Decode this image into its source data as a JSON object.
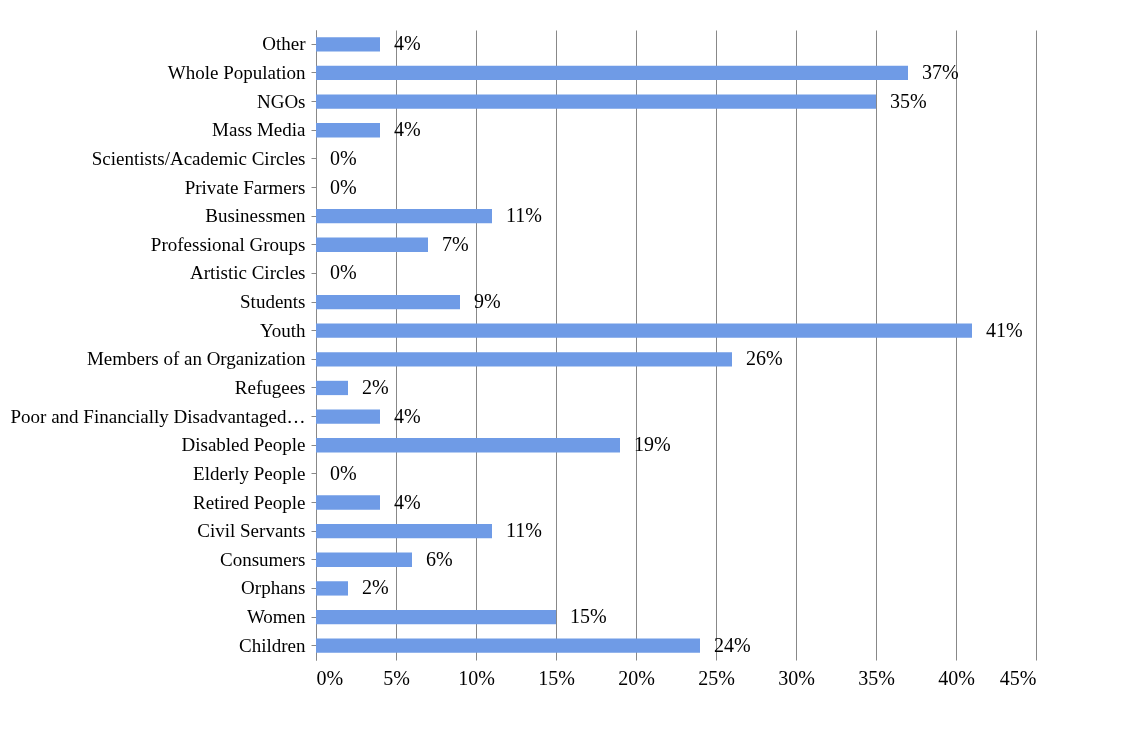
{
  "chart_data": {
    "type": "bar",
    "orientation": "horizontal",
    "categories": [
      "Other",
      "Whole Population",
      "NGOs",
      "Mass Media",
      "Scientists/Academic Circles",
      "Private Farmers",
      "Businessmen",
      "Professional Groups",
      "Artistic Circles",
      "Students",
      "Youth",
      "Members of an Organization",
      "Refugees",
      "Poor and Financially Disadvantaged…",
      "Disabled People",
      "Elderly People",
      "Retired People",
      "Civil Servants",
      "Consumers",
      "Orphans",
      "Women",
      "Children"
    ],
    "values": [
      4,
      37,
      35,
      4,
      0,
      0,
      11,
      7,
      0,
      9,
      41,
      26,
      2,
      4,
      19,
      0,
      4,
      11,
      6,
      2,
      15,
      24
    ],
    "color": "#6f9be6",
    "xlim": [
      0,
      45
    ],
    "xticks": [
      {
        "value": 0,
        "label": "0%"
      },
      {
        "value": 5,
        "label": "5%"
      },
      {
        "value": 10,
        "label": "10%"
      },
      {
        "value": 15,
        "label": "15%"
      },
      {
        "value": 20,
        "label": "20%"
      },
      {
        "value": 25,
        "label": "25%"
      },
      {
        "value": 30,
        "label": "30%"
      },
      {
        "value": 35,
        "label": "35%"
      },
      {
        "value": 40,
        "label": "40%"
      },
      {
        "value": 45,
        "label": "45%"
      }
    ],
    "value_labels": [
      "4%",
      "37%",
      "35%",
      "4%",
      "0%",
      "0%",
      "11%",
      "7%",
      "0%",
      "9%",
      "41%",
      "26%",
      "2%",
      "4%",
      "19%",
      "0%",
      "4%",
      "11%",
      "6%",
      "2%",
      "15%",
      "24%"
    ],
    "grid": "x"
  }
}
